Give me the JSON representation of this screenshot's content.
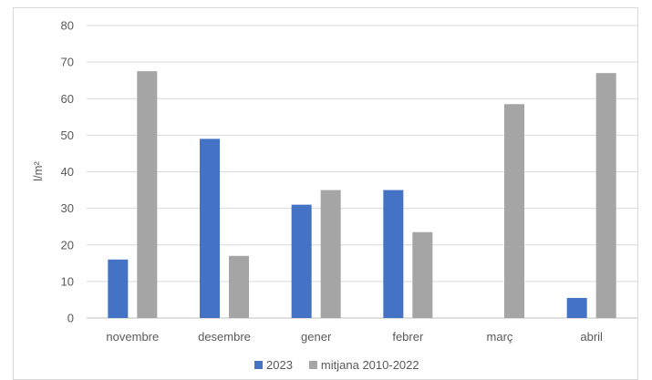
{
  "chart_data": {
    "type": "bar",
    "categories": [
      "novembre",
      "desembre",
      "gener",
      "febrer",
      "març",
      "abril"
    ],
    "series": [
      {
        "name": "2023",
        "color": "#4472c4",
        "values": [
          16,
          49,
          31,
          35,
          0,
          5.5
        ]
      },
      {
        "name": "mitjana 2010-2022",
        "color": "#a5a5a5",
        "values": [
          67.5,
          17,
          35,
          23.5,
          58.5,
          67
        ]
      }
    ],
    "ylabel": "l/m²",
    "ylim": [
      0,
      80
    ],
    "yticks": [
      0,
      10,
      20,
      30,
      40,
      50,
      60,
      70,
      80
    ],
    "grid": true,
    "legend": "bottom",
    "gridColor": "#d9d9d9",
    "axisColor": "#bfbfbf",
    "textColor": "#595959"
  }
}
